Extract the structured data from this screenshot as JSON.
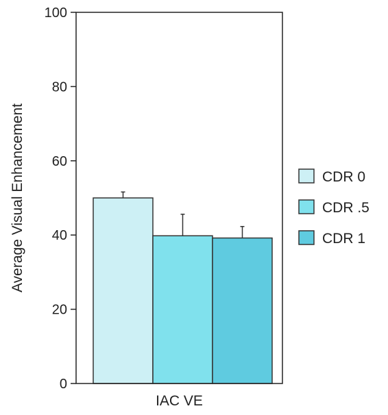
{
  "chart_data": {
    "type": "bar",
    "title": "",
    "xlabel": "",
    "ylabel": "Average Visual Enhancement",
    "ylim": [
      0,
      100
    ],
    "yticks": [
      0,
      20,
      40,
      60,
      80,
      100
    ],
    "categories": [
      "IAC VE"
    ],
    "grid": false,
    "legend_position": "right",
    "series": [
      {
        "name": "CDR 0",
        "values": [
          50.0
        ],
        "error": [
          1.6
        ],
        "color": "#cdf0f5"
      },
      {
        "name": "CDR .5",
        "values": [
          39.8
        ],
        "error": [
          5.8
        ],
        "color": "#80e1ed"
      },
      {
        "name": "CDR 1",
        "values": [
          39.2
        ],
        "error": [
          3.1
        ],
        "color": "#5fcbe0"
      }
    ]
  }
}
